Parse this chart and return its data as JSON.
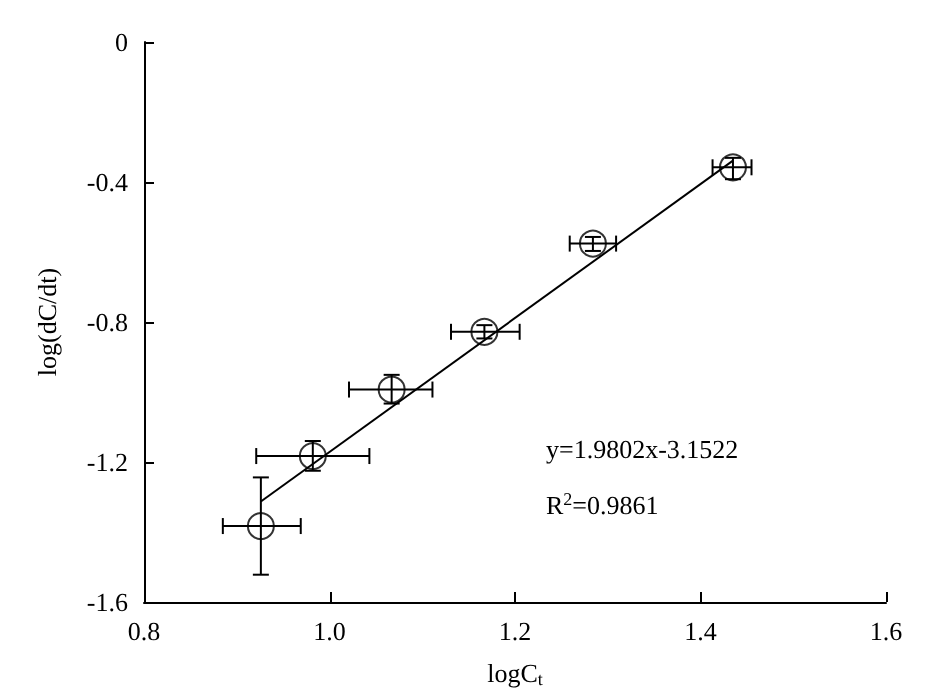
{
  "chart_data": {
    "type": "scatter",
    "xlabel": "logC$_{t}$",
    "ylabel": "log(dC/dt)",
    "xlim": [
      0.8,
      1.6
    ],
    "xticks": [
      0.8,
      {
        "value": 1,
        "label": "1.0"
      },
      1.2,
      1.4,
      1.6
    ],
    "ylim": [
      -1.6,
      0
    ],
    "yticks": [
      -1.6,
      -1.2,
      -0.8,
      -0.4,
      0
    ],
    "grid": false,
    "marker": "circle",
    "series": [
      {
        "color": "#000000",
        "x": [
          0.926,
          0.982,
          1.067,
          1.167,
          1.284,
          1.435
        ],
        "values": [
          -1.383,
          -1.183,
          -0.993,
          -0.828,
          -0.576,
          -0.358
        ],
        "errors": [
          [
            -1.522,
            -1.244
          ],
          [
            -1.225,
            -1.14
          ],
          [
            -1.033,
            -0.951
          ],
          [
            -0.847,
            -0.809
          ],
          [
            -0.597,
            -0.557
          ],
          [
            -0.392,
            -0.331
          ]
        ],
        "xerrors": [
          [
            0.885,
            0.969
          ],
          [
            0.921,
            1.043
          ],
          [
            1.021,
            1.111
          ],
          [
            1.131,
            1.205
          ],
          [
            1.259,
            1.309
          ],
          [
            1.413,
            1.455
          ]
        ]
      },
      {
        "type": "line",
        "color": "#000000",
        "x": [
          0.926,
          1.435
        ],
        "values": [
          -1.313,
          -0.339
        ],
        "marker": "none",
        "line_style": "solid"
      }
    ],
    "annotations": [
      "y=1.9802x-3.1522",
      "R$^{2}$=0.9861"
    ]
  }
}
